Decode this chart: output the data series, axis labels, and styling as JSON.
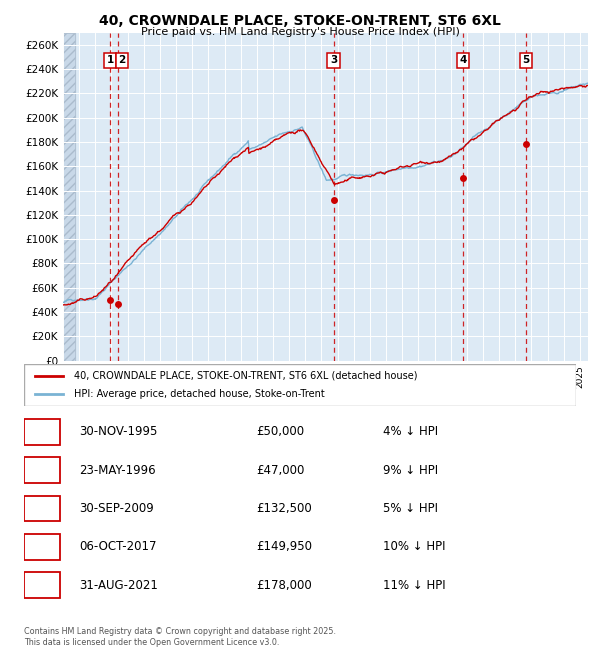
{
  "title": "40, CROWNDALE PLACE, STOKE-ON-TRENT, ST6 6XL",
  "subtitle": "Price paid vs. HM Land Registry's House Price Index (HPI)",
  "ylim": [
    0,
    270000
  ],
  "yticks": [
    0,
    20000,
    40000,
    60000,
    80000,
    100000,
    120000,
    140000,
    160000,
    180000,
    200000,
    220000,
    240000,
    260000
  ],
  "ytick_labels": [
    "£0",
    "£20K",
    "£40K",
    "£60K",
    "£80K",
    "£100K",
    "£120K",
    "£140K",
    "£160K",
    "£180K",
    "£200K",
    "£220K",
    "£240K",
    "£260K"
  ],
  "hpi_color": "#7ab3d4",
  "price_color": "#cc0000",
  "dot_color": "#cc0000",
  "vline_color": "#cc0000",
  "background_color": "#ddeaf5",
  "grid_color": "#ffffff",
  "hatch_color": "#c8d8e8",
  "transactions": [
    {
      "num": 1,
      "date": "1995-11-30",
      "x": 1995.917,
      "price": 50000
    },
    {
      "num": 2,
      "date": "1996-05-23",
      "x": 1996.396,
      "price": 47000
    },
    {
      "num": 3,
      "date": "2009-09-30",
      "x": 2009.747,
      "price": 132500
    },
    {
      "num": 4,
      "date": "2017-10-06",
      "x": 2017.764,
      "price": 149950
    },
    {
      "num": 5,
      "date": "2021-08-31",
      "x": 2021.664,
      "price": 178000
    }
  ],
  "table_rows": [
    {
      "num": 1,
      "date_str": "30-NOV-1995",
      "price_str": "£50,000",
      "hpi_str": "4% ↓ HPI"
    },
    {
      "num": 2,
      "date_str": "23-MAY-1996",
      "price_str": "£47,000",
      "hpi_str": "9% ↓ HPI"
    },
    {
      "num": 3,
      "date_str": "30-SEP-2009",
      "price_str": "£132,500",
      "hpi_str": "5% ↓ HPI"
    },
    {
      "num": 4,
      "date_str": "06-OCT-2017",
      "price_str": "£149,950",
      "hpi_str": "10% ↓ HPI"
    },
    {
      "num": 5,
      "date_str": "31-AUG-2021",
      "price_str": "£178,000",
      "hpi_str": "11% ↓ HPI"
    }
  ],
  "legend_label_price": "40, CROWNDALE PLACE, STOKE-ON-TRENT, ST6 6XL (detached house)",
  "legend_label_hpi": "HPI: Average price, detached house, Stoke-on-Trent",
  "footer": "Contains HM Land Registry data © Crown copyright and database right 2025.\nThis data is licensed under the Open Government Licence v3.0.",
  "xmin": 1993.0,
  "xmax": 2025.5
}
